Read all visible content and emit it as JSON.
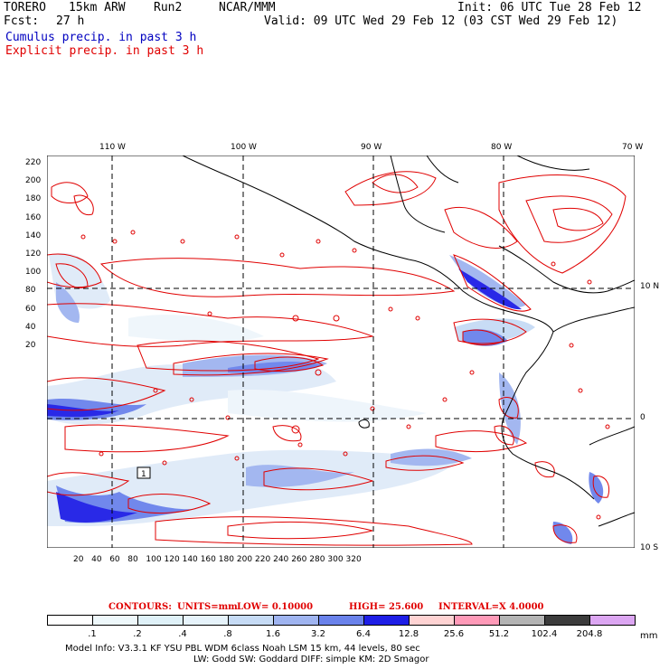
{
  "header": {
    "model": "TORERO",
    "res": "15km ARW",
    "run": "Run2",
    "org": "NCAR/MMM",
    "init": "Init: 06 UTC Tue 28 Feb 12",
    "fcst_label": "Fcst:",
    "fcst_value": "27 h",
    "valid": "Valid: 09 UTC Wed 29 Feb 12 (03 CST Wed 29 Feb 12)"
  },
  "legend": {
    "cumulus": "Cumulus precip. in past 3 h",
    "explicit": "Explicit precip. in past 3 h"
  },
  "axes": {
    "top": [
      "110 W",
      "100 W",
      "90 W",
      "80 W",
      "70 W"
    ],
    "left": [
      "220",
      "200",
      "180",
      "160",
      "140",
      "120",
      "100",
      "80",
      "60",
      "40",
      "20"
    ],
    "bottom": [
      "20",
      "40",
      "60",
      "80",
      "100",
      "120",
      "140",
      "160",
      "180",
      "200",
      "220",
      "240",
      "260",
      "280",
      "300",
      "320"
    ],
    "right": [
      "10 N",
      "0",
      "10 S"
    ]
  },
  "contours": {
    "label": "CONTOURS:",
    "units": "UNITS=mm",
    "low": "LOW= 0.10000",
    "high": "HIGH= 25.600",
    "interval": "INTERVAL=X 4.0000"
  },
  "colorbar": {
    "labels": [
      ".1",
      ".2",
      ".4",
      ".8",
      "1.6",
      "3.2",
      "6.4",
      "12.8",
      "25.6",
      "51.2",
      "102.4",
      "204.8"
    ],
    "unit": "mm",
    "colors": [
      "#ffffff",
      "#eef8fb",
      "#dff1f8",
      "#e6f3fb",
      "#c6dbf5",
      "#9fb4f0",
      "#6a82eb",
      "#1e1ee6",
      "#ffd3d3",
      "#ff9ab8",
      "#b4b4b4",
      "#3c3c3c",
      "#dca6f2"
    ]
  },
  "footer": {
    "line1": "Model Info: V3.3.1   KF    YSU PBL  WDM 6class  Noah LSM  15 km,   44 levels,   80 sec",
    "line2": "LW: Godd SW: Goddard DIFF: simple KM: 2D Smagor"
  },
  "box_label": "1"
}
